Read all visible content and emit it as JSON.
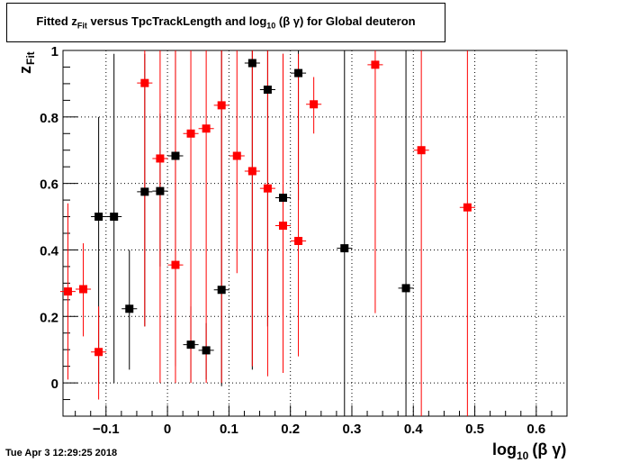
{
  "header": {
    "title": "Fitted z_Fit versus TpcTrackLength and log_10 (β γ) for Global deuteron"
  },
  "footer": {
    "timestamp": "Tue Apr  3 12:29:25 2018"
  },
  "chart_data": {
    "type": "scatter",
    "title": "Fitted z_Fit versus TpcTrackLength and log_10 (β γ) for Global deuteron",
    "xlabel": "log_10 (β γ)",
    "ylabel": "z_Fit",
    "xlim": [
      -0.17,
      0.65
    ],
    "ylim": [
      -0.1,
      1.0
    ],
    "x_ticks": [
      "−0.1",
      "0",
      "0.1",
      "0.2",
      "0.3",
      "0.4",
      "0.5",
      "0.6"
    ],
    "y_ticks": [
      "0",
      "0.2",
      "0.4",
      "0.6",
      "0.8",
      "1"
    ],
    "grid": true,
    "colors": {
      "series_black": "#000000",
      "series_red": "#ff0000"
    },
    "series": [
      {
        "color": "#000000",
        "points": [
          {
            "x": -0.112,
            "y": 0.5,
            "ylo": 0.0,
            "yhi": 0.8
          },
          {
            "x": -0.087,
            "y": 0.5,
            "ylo": 0.0,
            "yhi": 0.99
          },
          {
            "x": -0.062,
            "y": 0.223,
            "ylo": 0.04,
            "yhi": 0.4
          },
          {
            "x": -0.037,
            "y": 0.575,
            "ylo": 0.17,
            "yhi": 0.99
          },
          {
            "x": -0.012,
            "y": 0.577,
            "ylo": 0.35,
            "yhi": 0.81
          },
          {
            "x": 0.013,
            "y": 0.683,
            "ylo": 0.05,
            "yhi": 1.0
          },
          {
            "x": 0.038,
            "y": 0.115,
            "ylo": 0.0,
            "yhi": 0.23
          },
          {
            "x": 0.063,
            "y": 0.098,
            "ylo": 0.01,
            "yhi": 0.18
          },
          {
            "x": 0.088,
            "y": 0.28,
            "ylo": -0.01,
            "yhi": 1.0
          },
          {
            "x": 0.138,
            "y": 0.962,
            "ylo": 0.04,
            "yhi": 1.0
          },
          {
            "x": 0.163,
            "y": 0.882,
            "ylo": 0.17,
            "yhi": 1.0
          },
          {
            "x": 0.188,
            "y": 0.557,
            "ylo": 0.2,
            "yhi": 0.99
          },
          {
            "x": 0.213,
            "y": 0.932,
            "ylo": 0.55,
            "yhi": 1.0
          },
          {
            "x": 0.288,
            "y": 0.405,
            "ylo": -0.1,
            "yhi": 1.0
          },
          {
            "x": 0.388,
            "y": 0.285,
            "ylo": -0.1,
            "yhi": 1.0
          }
        ]
      },
      {
        "color": "#ff0000",
        "points": [
          {
            "x": -0.162,
            "y": 0.275,
            "ylo": 0.01,
            "yhi": 0.54
          },
          {
            "x": -0.137,
            "y": 0.282,
            "ylo": 0.14,
            "yhi": 0.42
          },
          {
            "x": -0.112,
            "y": 0.093,
            "ylo": -0.05,
            "yhi": 0.23
          },
          {
            "x": -0.037,
            "y": 0.902,
            "ylo": 0.17,
            "yhi": 1.0
          },
          {
            "x": -0.012,
            "y": 0.675,
            "ylo": 0.0,
            "yhi": 1.0
          },
          {
            "x": 0.013,
            "y": 0.355,
            "ylo": 0.0,
            "yhi": 1.0
          },
          {
            "x": 0.038,
            "y": 0.75,
            "ylo": 0.0,
            "yhi": 1.0
          },
          {
            "x": 0.063,
            "y": 0.765,
            "ylo": 0.0,
            "yhi": 1.0
          },
          {
            "x": 0.088,
            "y": 0.835,
            "ylo": 0.0,
            "yhi": 1.0
          },
          {
            "x": 0.113,
            "y": 0.683,
            "ylo": 0.33,
            "yhi": 1.0
          },
          {
            "x": 0.138,
            "y": 0.637,
            "ylo": 0.05,
            "yhi": 1.0
          },
          {
            "x": 0.163,
            "y": 0.585,
            "ylo": 0.02,
            "yhi": 1.0
          },
          {
            "x": 0.188,
            "y": 0.473,
            "ylo": 0.03,
            "yhi": 0.99
          },
          {
            "x": 0.213,
            "y": 0.427,
            "ylo": 0.08,
            "yhi": 0.99
          },
          {
            "x": 0.238,
            "y": 0.838,
            "ylo": 0.75,
            "yhi": 0.92
          },
          {
            "x": 0.338,
            "y": 0.957,
            "ylo": 0.21,
            "yhi": 1.0
          },
          {
            "x": 0.413,
            "y": 0.7,
            "ylo": -0.1,
            "yhi": 1.0
          },
          {
            "x": 0.488,
            "y": 0.528,
            "ylo": -0.1,
            "yhi": 1.0
          }
        ]
      }
    ]
  }
}
